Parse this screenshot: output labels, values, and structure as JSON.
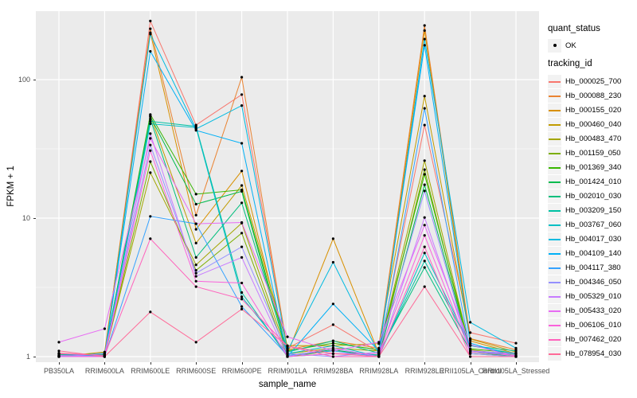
{
  "axes": {
    "y_title": "FPKM + 1",
    "x_title": "sample_name"
  },
  "legend": {
    "quant_status_title": "quant_status",
    "quant_status_items": [
      {
        "label": "OK",
        "marker": "point"
      }
    ],
    "tracking_id_title": "tracking_id"
  },
  "colors": {
    "panel_background": "#EBEBEB",
    "gridline": "#FFFFFF",
    "tick_text": "#4D4D4D",
    "axis_text": "#000000",
    "point": "#000000",
    "legend_key_background": "#F2F2F2"
  },
  "chart_data": {
    "type": "line",
    "yscale": "log10",
    "ylim": [
      0.91,
      312
    ],
    "xlabel": "sample_name",
    "ylabel": "FPKM + 1",
    "grid": true,
    "legend_position": "right",
    "y_breaks": [
      {
        "value": 1,
        "label": "1"
      },
      {
        "value": 10,
        "label": "10"
      },
      {
        "value": 100,
        "label": "100"
      }
    ],
    "y_minor_breaks": [
      3.162,
      31.62
    ],
    "categories": [
      "PB350LA",
      "RRIM600LA",
      "RRIM600LE",
      "RRIM600SE",
      "RRIM600PE",
      "RRIM901LA",
      "RRIM928BA",
      "RRIM928LA",
      "RRIM928LE",
      "RRII105LA_Control",
      "RRII105LA_Stressed"
    ],
    "series": [
      {
        "name": "Hb_000025_700",
        "color": "#F8766D",
        "values": [
          1.06,
          1.02,
          265,
          47,
          78,
          1.15,
          1.7,
          1.08,
          47,
          1.49,
          1.25
        ]
      },
      {
        "name": "Hb_000088_230",
        "color": "#EA8331",
        "values": [
          1.02,
          1.05,
          233,
          10.5,
          104,
          1.12,
          1.3,
          1.15,
          246,
          1.35,
          1.12
        ]
      },
      {
        "name": "Hb_000155_020",
        "color": "#D89000",
        "values": [
          1.0,
          1.08,
          218,
          8.3,
          21.9,
          1.05,
          7.1,
          1.05,
          226,
          1.3,
          1.05
        ]
      },
      {
        "name": "Hb_000460_040",
        "color": "#C09B00",
        "values": [
          1.01,
          1.03,
          55,
          6.6,
          17.2,
          1.2,
          1.2,
          1.24,
          76,
          1.34,
          1.08
        ]
      },
      {
        "name": "Hb_000483_470",
        "color": "#A3A500",
        "values": [
          1.0,
          1.02,
          21.3,
          4.6,
          9.2,
          1.05,
          1.15,
          1.1,
          26,
          1.12,
          1.02
        ]
      },
      {
        "name": "Hb_001159_050",
        "color": "#7CAE00",
        "values": [
          1.03,
          1.0,
          25.6,
          4.2,
          7.8,
          1.0,
          1.1,
          1.02,
          22.4,
          1.05,
          1.0
        ]
      },
      {
        "name": "Hb_001369_340",
        "color": "#39B600",
        "values": [
          1.0,
          1.04,
          56,
          14.9,
          16.0,
          1.1,
          1.25,
          1.12,
          20.7,
          1.14,
          1.06
        ]
      },
      {
        "name": "Hb_001424_010",
        "color": "#00BB4E",
        "values": [
          1.02,
          1.0,
          54,
          12.6,
          15.6,
          1.02,
          1.12,
          1.0,
          17.4,
          1.08,
          1.0
        ]
      },
      {
        "name": "Hb_002010_030",
        "color": "#00BF7D",
        "values": [
          1.0,
          1.06,
          52,
          5.2,
          12.9,
          1.08,
          1.3,
          1.06,
          4.4,
          1.1,
          1.04
        ]
      },
      {
        "name": "Hb_003209_150",
        "color": "#00C1A3",
        "values": [
          1.04,
          1.0,
          50,
          46,
          2.9,
          1.0,
          1.05,
          1.03,
          4.9,
          1.2,
          1.1
        ]
      },
      {
        "name": "Hb_003767_060",
        "color": "#00BFC4",
        "values": [
          1.0,
          1.03,
          48,
          45,
          2.7,
          1.05,
          1.2,
          1.0,
          5.6,
          1.2,
          1.05
        ]
      },
      {
        "name": "Hb_004017_030",
        "color": "#00BAE0",
        "values": [
          1.05,
          1.0,
          213,
          44,
          65,
          1.1,
          4.8,
          1.05,
          196,
          1.77,
          1.15
        ]
      },
      {
        "name": "Hb_004109_140",
        "color": "#00B0F6",
        "values": [
          1.0,
          1.02,
          160,
          43,
          34.7,
          1.0,
          2.4,
          1.1,
          177,
          1.25,
          1.0
        ]
      },
      {
        "name": "Hb_004117_380",
        "color": "#35A2FF",
        "values": [
          1.01,
          1.0,
          10.3,
          9.1,
          2.3,
          1.02,
          1.1,
          1.0,
          62,
          1.1,
          1.02
        ]
      },
      {
        "name": "Hb_004346_050",
        "color": "#9590FF",
        "values": [
          1.0,
          1.05,
          33.7,
          4.0,
          6.2,
          1.05,
          1.0,
          1.08,
          15.7,
          1.05,
          1.0
        ]
      },
      {
        "name": "Hb_005329_010",
        "color": "#C77CFF",
        "values": [
          1.02,
          1.0,
          40.7,
          3.8,
          5.2,
          1.0,
          1.15,
          1.0,
          10.1,
          1.1,
          1.05
        ]
      },
      {
        "name": "Hb_005433_020",
        "color": "#E76BF3",
        "values": [
          1.27,
          1.59,
          37.6,
          9.1,
          9.3,
          1.39,
          1.1,
          1.27,
          8.9,
          1.22,
          1.0
        ]
      },
      {
        "name": "Hb_006106_010",
        "color": "#FA62DB",
        "values": [
          1.0,
          1.0,
          30.7,
          3.5,
          3.4,
          1.0,
          1.05,
          1.05,
          7.5,
          1.08,
          1.02
        ]
      },
      {
        "name": "Hb_007462_020",
        "color": "#FF62BC",
        "values": [
          1.05,
          1.02,
          7.1,
          3.2,
          2.6,
          1.19,
          1.0,
          1.0,
          6.2,
          1.0,
          1.0
        ]
      },
      {
        "name": "Hb_078954_030",
        "color": "#FF6A98",
        "values": [
          1.1,
          1.0,
          2.1,
          1.27,
          2.2,
          1.19,
          1.05,
          1.0,
          3.2,
          1.0,
          1.0
        ]
      }
    ]
  }
}
